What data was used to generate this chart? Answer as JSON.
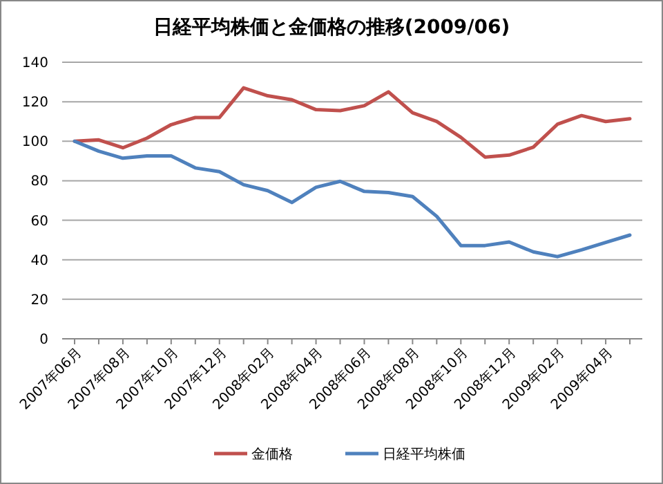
{
  "chart_data": {
    "type": "line",
    "title": "日経平均株価と金価格の推移(2009/06)",
    "categories": [
      "2007年06月",
      null,
      "2007年08月",
      null,
      "2007年10月",
      null,
      "2007年12月",
      null,
      "2008年02月",
      null,
      "2008年04月",
      null,
      "2008年06月",
      null,
      "2008年08月",
      null,
      "2008年10月",
      null,
      "2008年12月",
      null,
      "2009年02月",
      null,
      "2009年04月",
      null
    ],
    "series": [
      {
        "name": "金価格",
        "color": "#c0504d",
        "values": [
          100,
          100.7,
          96.7,
          101.6,
          108.4,
          112,
          112,
          127,
          123,
          121,
          116,
          115.5,
          118,
          125,
          114.4,
          110,
          102,
          92,
          93,
          97,
          108.6,
          113,
          110,
          111.4
        ]
      },
      {
        "name": "日経平均株価",
        "color": "#4f81bd",
        "values": [
          100,
          95,
          91.4,
          92.6,
          92.6,
          86.5,
          84.6,
          78,
          75,
          69,
          76.7,
          79.7,
          74.6,
          74,
          72,
          62,
          47.2,
          47.2,
          49,
          44,
          41.6,
          45,
          48.8,
          52.5
        ]
      }
    ],
    "ylim": [
      0,
      140
    ],
    "yticks": [
      0,
      20,
      40,
      60,
      80,
      100,
      120,
      140
    ],
    "grid": "y",
    "legend": "bottom",
    "marker": "none",
    "line_style": "solid"
  }
}
